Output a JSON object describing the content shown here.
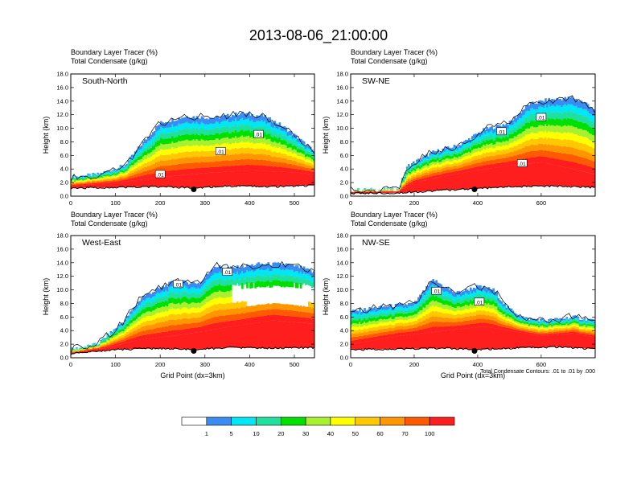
{
  "figure": {
    "title": "2013-08-06_21:00:00",
    "contour_note": "Total Condensate Contours: .01 to .01 by .000"
  },
  "chart_data": [
    {
      "type": "heatmap",
      "panel_label": "South-North",
      "header": [
        "Boundary Layer Tracer   (%)",
        "Total Condensate   (g/kg)"
      ],
      "ylabel": "Height (km)",
      "xlabel": "",
      "xlim": [
        0,
        545
      ],
      "ylim": [
        0,
        18
      ],
      "x_ticks": [
        0,
        100,
        200,
        300,
        400,
        500
      ],
      "y_ticks": [
        "0.0",
        "2.0",
        "4.0",
        "6.0",
        "8.0",
        "10.0",
        "12.0",
        "14.0",
        "16.0",
        "18.0"
      ],
      "terrain": [
        [
          0,
          1.2
        ],
        [
          100,
          1.3
        ],
        [
          200,
          1.4
        ],
        [
          275,
          1.2
        ],
        [
          350,
          1.5
        ],
        [
          450,
          1.4
        ],
        [
          545,
          1.6
        ]
      ],
      "cloud_base": [
        [
          0,
          1.5
        ],
        [
          100,
          2.0
        ],
        [
          200,
          2.8
        ],
        [
          300,
          3.4
        ],
        [
          400,
          3.8
        ],
        [
          500,
          3.5
        ],
        [
          545,
          3.2
        ]
      ],
      "cloud_top": [
        [
          0,
          2.8
        ],
        [
          60,
          3.2
        ],
        [
          120,
          4.5
        ],
        [
          160,
          7.8
        ],
        [
          200,
          10.8
        ],
        [
          260,
          11.8
        ],
        [
          320,
          11.5
        ],
        [
          380,
          12.2
        ],
        [
          430,
          11.8
        ],
        [
          470,
          10.5
        ],
        [
          510,
          8.5
        ],
        [
          545,
          6.5
        ]
      ],
      "marker": {
        "x": 275,
        "y": 1.0
      },
      "contour_labels": [
        {
          "x": 420,
          "y": 9.1,
          "text": ".01"
        },
        {
          "x": 335,
          "y": 6.6,
          "text": ".01"
        },
        {
          "x": 200,
          "y": 3.2,
          "text": ".01"
        }
      ]
    },
    {
      "type": "heatmap",
      "panel_label": "SW-NE",
      "header": [
        "Boundary Layer Tracer   (%)",
        "Total Condensate   (g/kg)"
      ],
      "ylabel": "Height (km)",
      "xlabel": "",
      "xlim": [
        0,
        770
      ],
      "ylim": [
        0,
        18
      ],
      "x_ticks": [
        0,
        200,
        400,
        600
      ],
      "y_ticks": [
        "0.0",
        "2.0",
        "4.0",
        "6.0",
        "8.0",
        "10.0",
        "12.0",
        "14.0",
        "16.0",
        "18.0"
      ],
      "terrain": [
        [
          0,
          0.4
        ],
        [
          150,
          0.5
        ],
        [
          300,
          0.9
        ],
        [
          390,
          1.1
        ],
        [
          500,
          1.4
        ],
        [
          650,
          1.5
        ],
        [
          770,
          1.3
        ]
      ],
      "cloud_base": [
        [
          0,
          0.6
        ],
        [
          150,
          0.7
        ],
        [
          200,
          2.0
        ],
        [
          300,
          3.0
        ],
        [
          400,
          3.8
        ],
        [
          500,
          4.5
        ],
        [
          600,
          5.0
        ],
        [
          700,
          4.0
        ],
        [
          770,
          3.2
        ]
      ],
      "cloud_top": [
        [
          0,
          0.9
        ],
        [
          150,
          1.0
        ],
        [
          180,
          4.5
        ],
        [
          260,
          6.5
        ],
        [
          340,
          7.5
        ],
        [
          420,
          9.8
        ],
        [
          500,
          10.8
        ],
        [
          560,
          13.5
        ],
        [
          620,
          14.2
        ],
        [
          700,
          14.5
        ],
        [
          750,
          13.5
        ],
        [
          770,
          12.5
        ]
      ],
      "marker": {
        "x": 390,
        "y": 1.0
      },
      "contour_labels": [
        {
          "x": 600,
          "y": 11.6,
          "text": ".01"
        },
        {
          "x": 475,
          "y": 9.5,
          "text": ".01"
        },
        {
          "x": 540,
          "y": 4.8,
          "text": ".01"
        }
      ]
    },
    {
      "type": "heatmap",
      "panel_label": "West-East",
      "header": [
        "Boundary Layer Tracer   (%)",
        "Total Condensate   (g/kg)"
      ],
      "ylabel": "Height (km)",
      "xlabel": "Grid Point (dx=3km)",
      "xlim": [
        0,
        545
      ],
      "ylim": [
        0,
        18
      ],
      "x_ticks": [
        0,
        100,
        200,
        300,
        400,
        500
      ],
      "y_ticks": [
        "0.0",
        "2.0",
        "4.0",
        "6.0",
        "8.0",
        "10.0",
        "12.0",
        "14.0",
        "16.0",
        "18.0"
      ],
      "terrain": [
        [
          0,
          0.6
        ],
        [
          100,
          1.2
        ],
        [
          200,
          1.4
        ],
        [
          275,
          1.2
        ],
        [
          350,
          1.5
        ],
        [
          450,
          1.4
        ],
        [
          545,
          1.5
        ]
      ],
      "cloud_base": [
        [
          0,
          0.7
        ],
        [
          80,
          1.5
        ],
        [
          150,
          2.6
        ],
        [
          250,
          3.4
        ],
        [
          350,
          4.5
        ],
        [
          450,
          5.5
        ],
        [
          545,
          5.0
        ]
      ],
      "cloud_top": [
        [
          0,
          1.2
        ],
        [
          60,
          2.0
        ],
        [
          120,
          5.5
        ],
        [
          160,
          9.0
        ],
        [
          230,
          11.2
        ],
        [
          290,
          11.0
        ],
        [
          320,
          13.5
        ],
        [
          360,
          13.2
        ],
        [
          420,
          13.8
        ],
        [
          480,
          13.8
        ],
        [
          520,
          13.2
        ],
        [
          545,
          12.5
        ]
      ],
      "anvil_gap": {
        "x_from": 360,
        "x_to": 545,
        "y_from": 7.5,
        "y_to": 11.0
      },
      "marker": {
        "x": 275,
        "y": 1.0
      },
      "contour_labels": [
        {
          "x": 240,
          "y": 10.8,
          "text": ".01"
        },
        {
          "x": 350,
          "y": 12.6,
          "text": ".01"
        }
      ]
    },
    {
      "type": "heatmap",
      "panel_label": "NW-SE",
      "header": [
        "Boundary Layer Tracer   (%)",
        "Total Condensate   (g/kg)"
      ],
      "ylabel": "Height (km)",
      "xlabel": "Grid Point (dx=3km)",
      "xlim": [
        0,
        770
      ],
      "ylim": [
        0,
        18
      ],
      "x_ticks": [
        0,
        200,
        400,
        600
      ],
      "y_ticks": [
        "0.0",
        "2.0",
        "4.0",
        "6.0",
        "8.0",
        "10.0",
        "12.0",
        "14.0",
        "16.0",
        "18.0"
      ],
      "terrain": [
        [
          0,
          1.2
        ],
        [
          150,
          1.3
        ],
        [
          300,
          1.4
        ],
        [
          390,
          1.2
        ],
        [
          500,
          1.4
        ],
        [
          650,
          1.6
        ],
        [
          770,
          1.3
        ]
      ],
      "cloud_base": [
        [
          0,
          2.0
        ],
        [
          150,
          3.2
        ],
        [
          300,
          4.0
        ],
        [
          420,
          4.6
        ],
        [
          500,
          4.0
        ],
        [
          600,
          3.2
        ],
        [
          700,
          3.6
        ],
        [
          770,
          3.0
        ]
      ],
      "cloud_top": [
        [
          0,
          6.8
        ],
        [
          100,
          7.5
        ],
        [
          200,
          8.0
        ],
        [
          260,
          11.5
        ],
        [
          330,
          9.5
        ],
        [
          400,
          10.5
        ],
        [
          450,
          10.0
        ],
        [
          490,
          7.5
        ],
        [
          550,
          5.8
        ],
        [
          620,
          5.5
        ],
        [
          700,
          6.0
        ],
        [
          770,
          5.5
        ]
      ],
      "marker": {
        "x": 390,
        "y": 1.0
      },
      "contour_labels": [
        {
          "x": 270,
          "y": 9.8,
          "text": ".01"
        },
        {
          "x": 405,
          "y": 8.2,
          "text": ".01"
        }
      ]
    }
  ],
  "colorbar": {
    "labels": [
      "1",
      "5",
      "10",
      "20",
      "30",
      "40",
      "50",
      "60",
      "70",
      "100"
    ],
    "colors": [
      "#ffffff",
      "#3a8cf2",
      "#00e6f5",
      "#20e0a0",
      "#00e000",
      "#a8f030",
      "#ffff00",
      "#ffc800",
      "#ff9600",
      "#ff5a00",
      "#ff1e1e"
    ]
  }
}
